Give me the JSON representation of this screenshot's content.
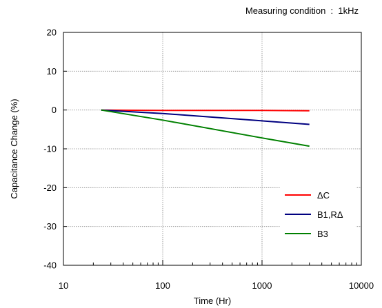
{
  "annotation": "Measuring condition  :  1kHz",
  "chart_data": {
    "type": "line",
    "xlabel": "Time (Hr)",
    "ylabel": "Capacitance Change (%)",
    "x_scale": "log",
    "xlim": [
      10,
      10000
    ],
    "ylim": [
      -40,
      20
    ],
    "x_ticks": [
      10,
      100,
      1000,
      10000
    ],
    "y_ticks": [
      20,
      10,
      0,
      -10,
      -20,
      -30,
      -40
    ],
    "x_tick_labels": [
      "10",
      "100",
      "1000",
      "10000"
    ],
    "y_tick_labels": [
      "20",
      "10",
      "0",
      "-10",
      "-20",
      "-30",
      "-40"
    ],
    "grid": true,
    "legend_position": "bottom-right",
    "series": [
      {
        "name": "ΔC",
        "color": "#ff0000",
        "x": [
          24,
          100,
          1000,
          3000
        ],
        "y": [
          0,
          -0.1,
          -0.1,
          -0.2
        ]
      },
      {
        "name": "B1,RΔ",
        "color": "#000080",
        "x": [
          24,
          100,
          1000,
          3000
        ],
        "y": [
          0,
          -0.9,
          -2.8,
          -3.7
        ]
      },
      {
        "name": "B3",
        "color": "#008000",
        "x": [
          24,
          100,
          1000,
          3000
        ],
        "y": [
          0,
          -2.6,
          -7.2,
          -9.3
        ]
      }
    ]
  }
}
